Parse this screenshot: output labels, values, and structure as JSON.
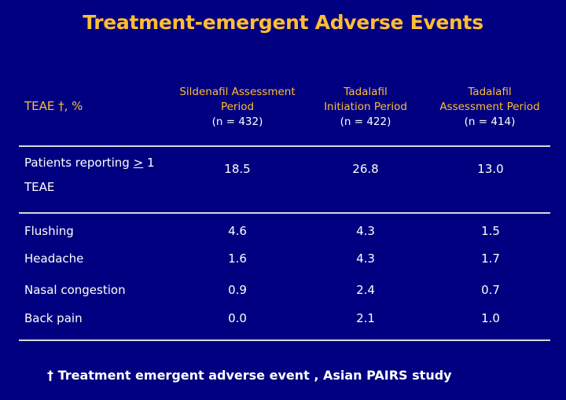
{
  "title": "Treatment-emergent Adverse Events",
  "header": {
    "row_label": "TEAE †, %",
    "columns": [
      {
        "line1": "Sildenafil Assessment",
        "line2": "Period",
        "n": "(n = 432)"
      },
      {
        "line1": "Tadalafil",
        "line2": "Initiation Period",
        "n": "(n = 422)"
      },
      {
        "line1": "Tadalafil",
        "line2": "Assessment Period",
        "n": "(n = 414)"
      }
    ]
  },
  "summary_row": {
    "label_part1": "Patients reporting ",
    "label_symbol": ">",
    "label_part2": " 1",
    "label_line2": "TEAE",
    "values": [
      "18.5",
      "26.8",
      "13.0"
    ]
  },
  "rows": [
    {
      "label": "Flushing",
      "values": [
        "4.6",
        "4.3",
        "1.5"
      ]
    },
    {
      "label": "Headache",
      "values": [
        "1.6",
        "4.3",
        "1.7"
      ]
    },
    {
      "label": "Nasal congestion",
      "values": [
        "0.9",
        "2.4",
        "0.7"
      ]
    },
    {
      "label": "Back pain",
      "values": [
        "0.0",
        "2.1",
        "1.0"
      ]
    }
  ],
  "footnote": "† Treatment emergent adverse event , Asian PAIRS study",
  "colors": {
    "background": "#000080",
    "accent": "#ffbd33",
    "text": "#ffffff",
    "rule": "#d9d9d9"
  }
}
